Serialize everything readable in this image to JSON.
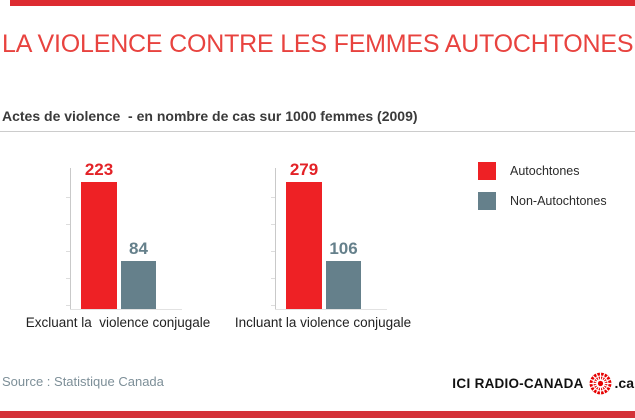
{
  "header": {
    "title": "LA VIOLENCE CONTRE LES FEMMES AUTOCHTONES",
    "subtitle": "Actes de violence  - en nombre de cas sur 1000 femmes (2009)"
  },
  "chart_data": {
    "type": "bar",
    "title": "Actes de violence - en nombre de cas sur 1000 femmes (2009)",
    "unit": "nombre de cas sur 1000 femmes",
    "year": "2009",
    "categories": [
      "Excluant la  violence conjugale",
      "Incluant la violence conjugale"
    ],
    "series": [
      {
        "name": "Autochtones",
        "color": "#ee2125",
        "label_color": "#e32227",
        "values": [
          223,
          279
        ]
      },
      {
        "name": "Non-Autochtones",
        "color": "#65808b",
        "label_color": "#65808b",
        "values": [
          84,
          106
        ]
      }
    ],
    "grid": false,
    "legend_position": "right",
    "value_labels_shown": true
  },
  "legend": {
    "items": [
      {
        "label": "Autochtones",
        "color": "#ee2125"
      },
      {
        "label": "Non-Autochtones",
        "color": "#65808b"
      }
    ]
  },
  "footer": {
    "source": "Source : Statistique Canada",
    "logo": {
      "ici": "ICI",
      "radio_canada": "RADIO-CANADA",
      "suffix": ".ca"
    }
  },
  "colors": {
    "accent_top_bar": "#dd2b31",
    "accent_bottom_bar": "#d43239",
    "title_red": "#e8433f",
    "bar_red": "#ee2125",
    "bar_gray": "#65808b",
    "divider_gray": "#cccccc",
    "source_gray": "#7d8f98",
    "logo_gem_red": "#e60000"
  }
}
